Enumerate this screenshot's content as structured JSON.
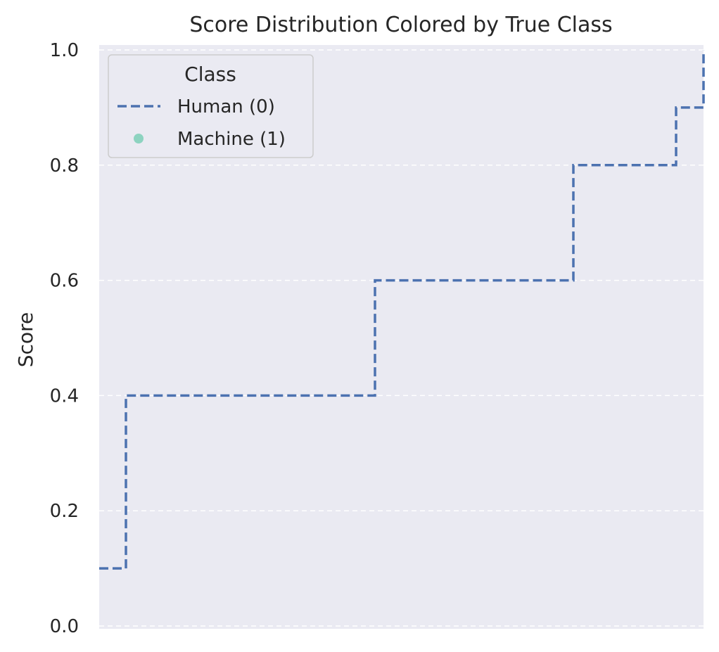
{
  "chart_data": {
    "type": "line",
    "title": "Score Distribution Colored by True Class",
    "xlabel": "",
    "ylabel": "Score",
    "ylim": [
      0.0,
      1.0
    ],
    "yticks": [
      "0.0",
      "0.2",
      "0.4",
      "0.6",
      "0.8",
      "1.0"
    ],
    "grid": true,
    "legend": {
      "title": "Class",
      "placement": "top-left",
      "entries": [
        {
          "label": "Human (0)",
          "marker": "dashed-line",
          "color": "#4c72b0"
        },
        {
          "label": "Machine (1)",
          "marker": "dot",
          "color": "#8dd3c0"
        }
      ]
    },
    "series": [
      {
        "name": "Human (0)",
        "style": "step-dashed",
        "color": "#4c72b0",
        "x": [
          0,
          1,
          2,
          3,
          4,
          5,
          6,
          7,
          8,
          9,
          10
        ],
        "y": [
          0.1,
          0.4,
          0.4,
          0.4,
          0.6,
          0.6,
          0.6,
          0.8,
          0.8,
          0.9,
          1.0
        ]
      }
    ],
    "colors": {
      "background": "#eaeaf2",
      "grid": "#ffffff",
      "text": "#262626"
    }
  }
}
